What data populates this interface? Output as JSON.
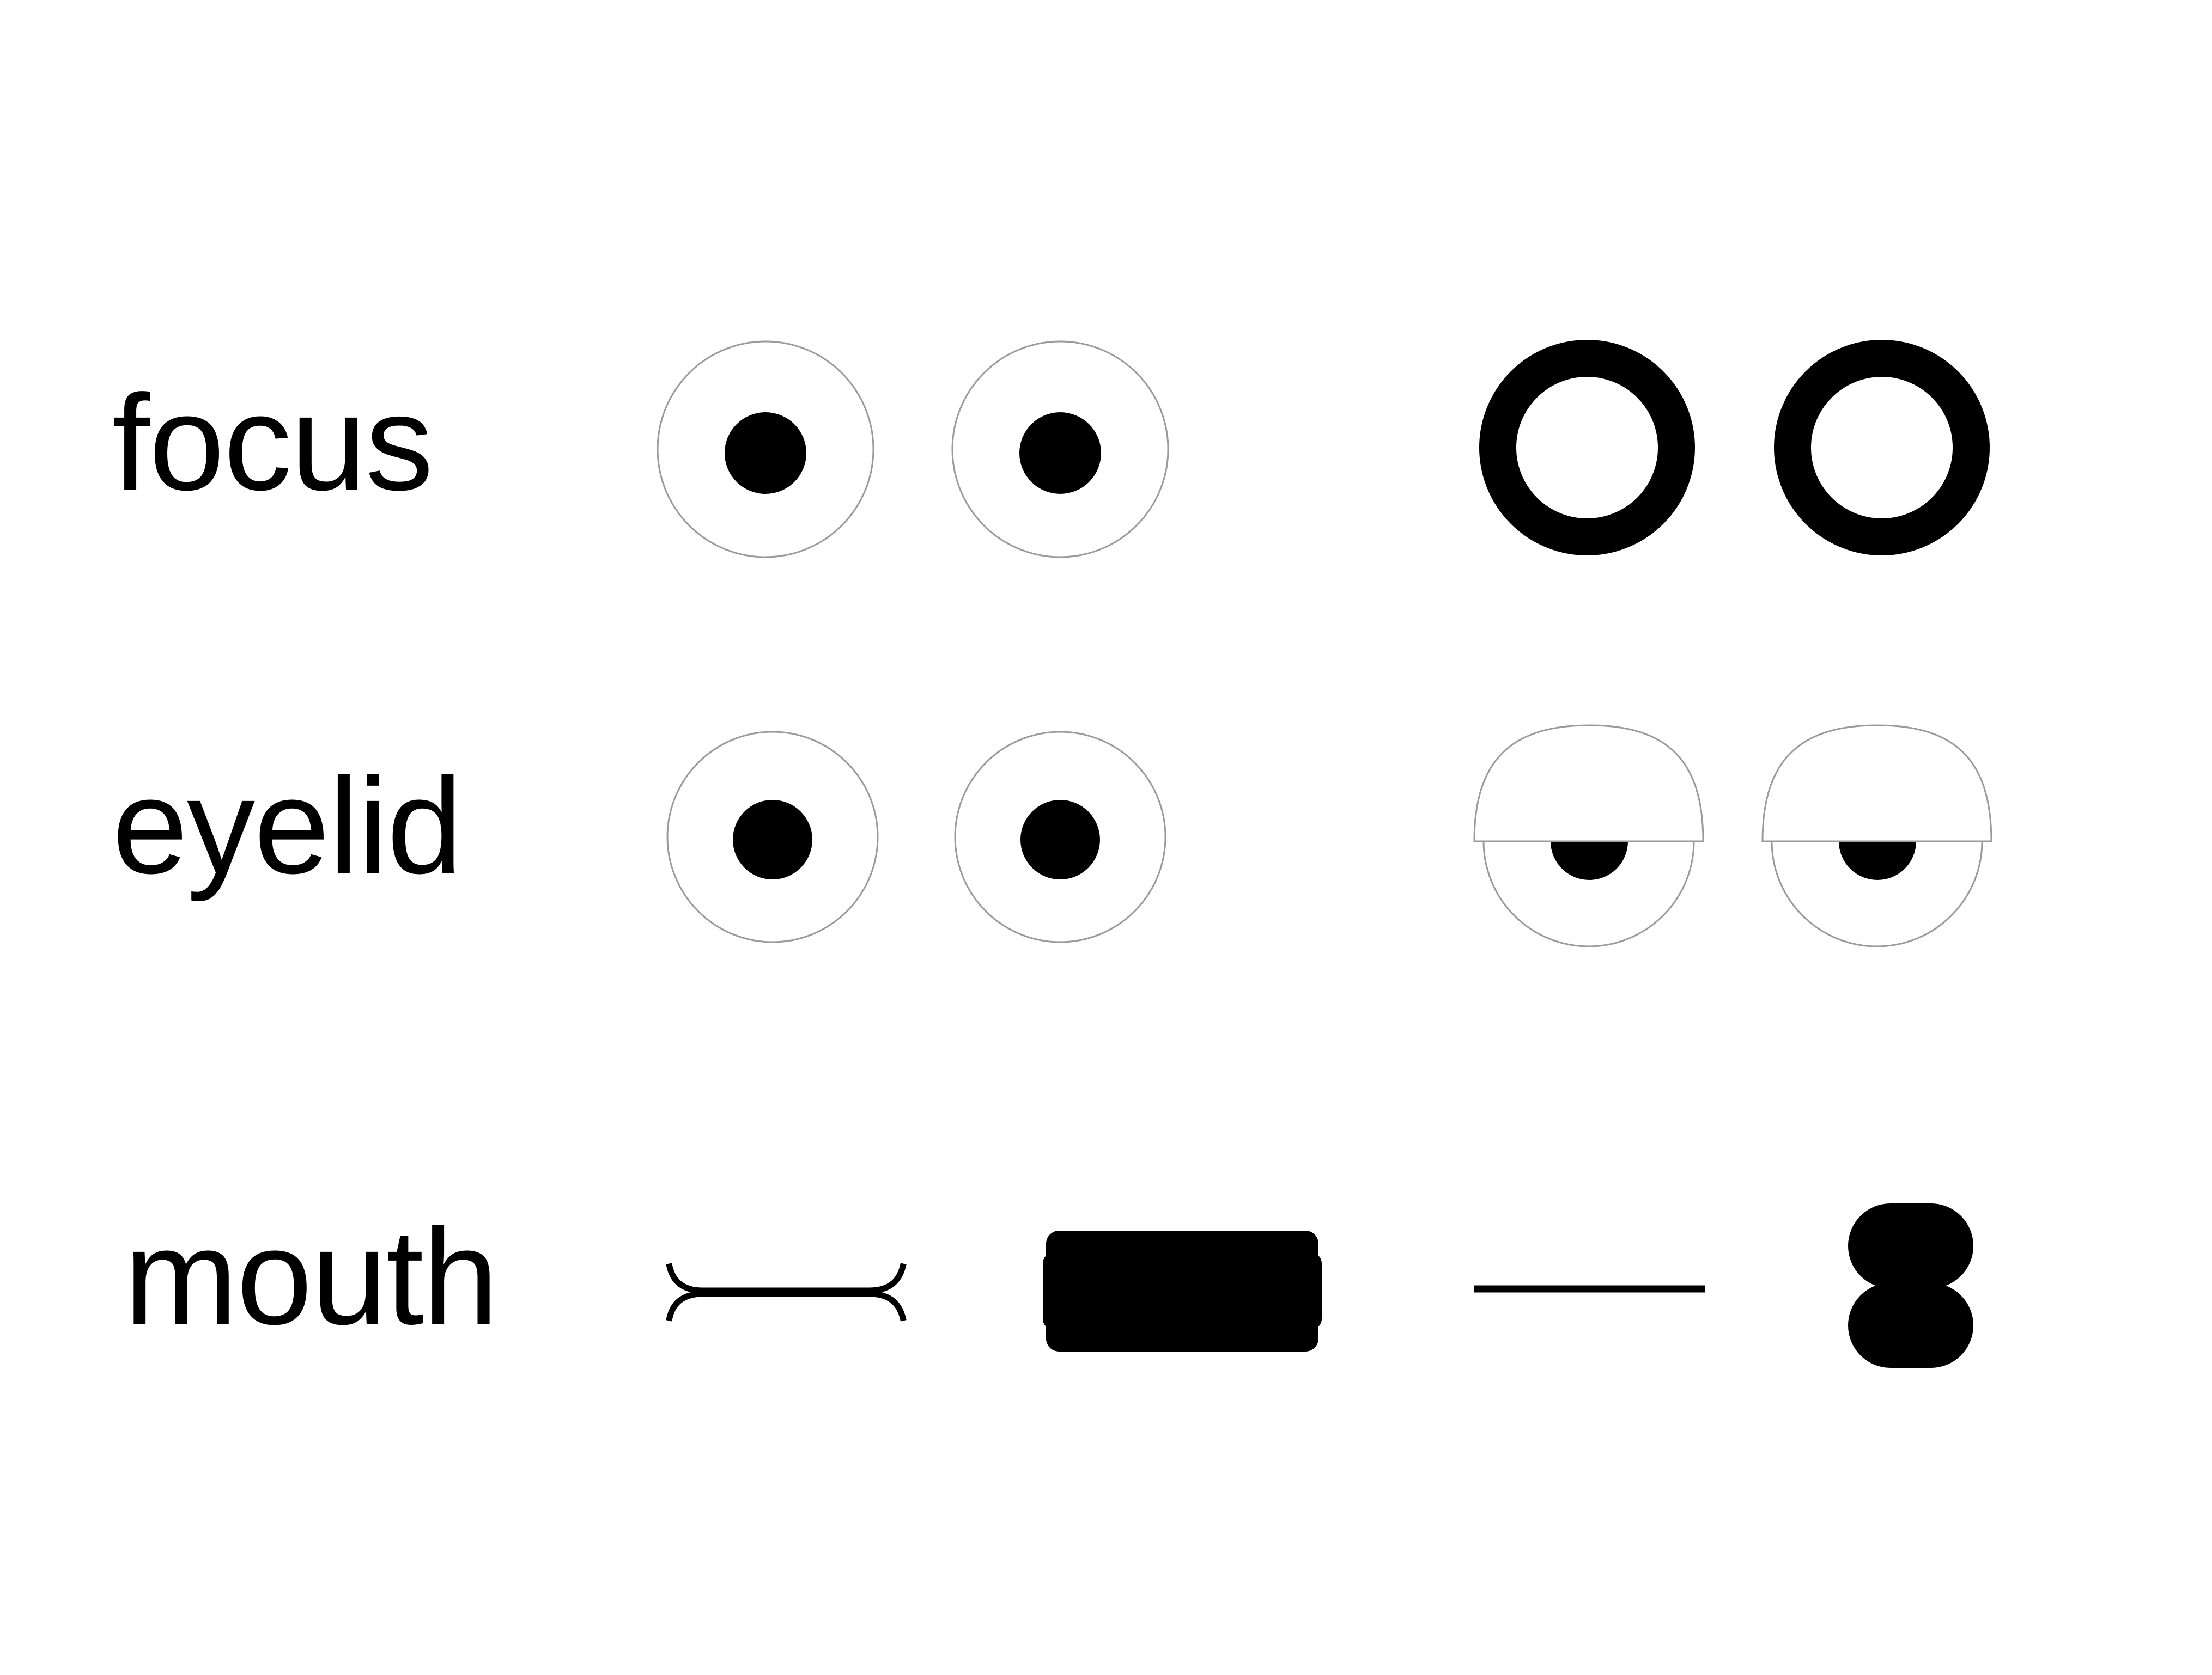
{
  "rows": [
    {
      "label": "focus"
    },
    {
      "label": "eyelid"
    },
    {
      "label": "mouth"
    }
  ],
  "colors": {
    "background": "#ffffff",
    "ink": "#000000",
    "outline": "#9a9a9a"
  }
}
